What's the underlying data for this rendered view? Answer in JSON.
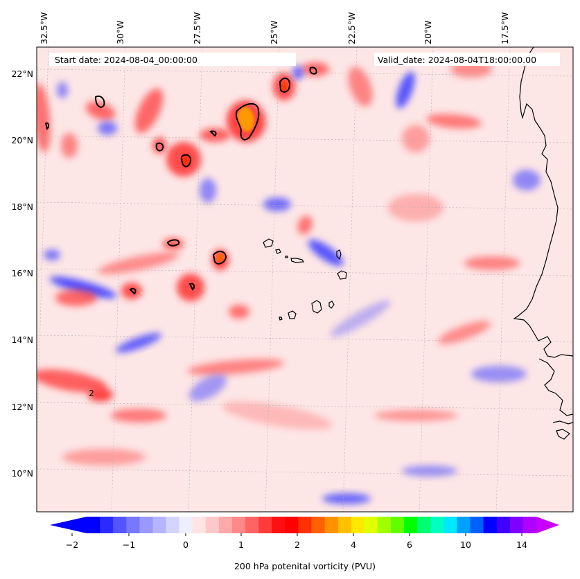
{
  "map": {
    "start_label": "Start date: 2024-08-04_00:00:00",
    "valid_label": "Valid_date: 2024-08-04T18:00:00.00",
    "lon_ticks": [
      "32.5°W",
      "30°W",
      "27.5°W",
      "25°W",
      "22.5°W",
      "20°W",
      "17.5°W"
    ],
    "lat_ticks": [
      "22°N",
      "20°N",
      "18°N",
      "16°N",
      "14°N",
      "12°N",
      "10°N"
    ],
    "contour_level_pvu": 2,
    "contour_label": "2",
    "ocean_color": "#fde6e6",
    "coast_color": "#000000"
  },
  "colorbar": {
    "label": "200 hPa potenital vorticity (PVU)",
    "ticks": [
      "−2",
      "−1",
      "0",
      "1",
      "2",
      "4",
      "6",
      "10",
      "14"
    ],
    "colors": [
      "#0000ff",
      "#2a2aff",
      "#5555ff",
      "#7777ff",
      "#9999ff",
      "#b4b4ff",
      "#d4d4ff",
      "#eeeeff",
      "#ffe4e4",
      "#ffc8c8",
      "#ffa8a8",
      "#ff8888",
      "#ff6464",
      "#ff3a3a",
      "#ff1010",
      "#ff0000",
      "#ff3000",
      "#ff6000",
      "#ff9000",
      "#ffc000",
      "#ffe800",
      "#e0ff00",
      "#a0ff00",
      "#60ff00",
      "#00ff00",
      "#00ff70",
      "#00ffc0",
      "#00e8ff",
      "#00a0ff",
      "#0060ff",
      "#0000ff",
      "#4000ff",
      "#8000ff",
      "#b000ff"
    ],
    "extend_min_color": "#0000ff",
    "extend_max_color": "#c800ff"
  },
  "features": {
    "positive_blob_color": "#ff3030",
    "negative_blob_color": "#4646ff"
  }
}
